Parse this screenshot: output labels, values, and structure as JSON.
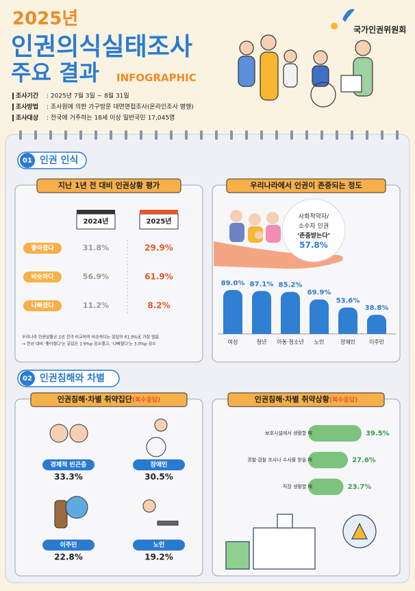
{
  "header": {
    "year": "2025년",
    "title": "인권의식실태조사",
    "subtitle": "주요 결과",
    "tag": "INFOGRAPHIC",
    "logo": "국가인권위원회",
    "info": [
      {
        "label": "조사기간",
        "text": ": 2025년 7월 3일 ~ 8월 31일"
      },
      {
        "label": "조사방법",
        "text": ": 조사원에 의한 가구방문 대면면접조사(온라인조사 병행)"
      },
      {
        "label": "조사대상",
        "text": ": 전국에 거주하는 18세 이상 일반국민 17,045명"
      }
    ]
  },
  "sections": [
    {
      "number": "01",
      "title": "인권 인식"
    },
    {
      "number": "02",
      "title": "인권침해와 차별"
    }
  ],
  "comparison": {
    "title": "지난 1년 전 대비 인권상황 평가",
    "columns": [
      "2024년",
      "2025년"
    ],
    "rows": [
      [
        "좋아졌다",
        "31.8%",
        "29.9%"
      ],
      [
        "비슷하다",
        "56.9%",
        "61.9%"
      ],
      [
        "나빠졌다",
        "11.2%",
        "8.2%"
      ]
    ],
    "note": [
      "우리나라 인권상황은 1년 전과 비교하여 비슷하다는 응답이 61.9%로 가장 많음",
      "→ 전년 대비 '좋아졌다'는 응답은 1.9%p 감소했고, '나빠졌다'는 3.0%p 감소"
    ]
  },
  "callout": {
    "lines": [
      "사회적약자/",
      "소수자 인권",
      "‘존중받는다’"
    ],
    "value": "57.8%"
  },
  "groups": {
    "title": "인권침해·차별 취약집단",
    "note": "(복수응답)",
    "items": [
      {
        "label": "경제적 빈곤층",
        "value": "33.3%"
      },
      {
        "label": "장애인",
        "value": "30.5%"
      },
      {
        "label": "이주민",
        "value": "22.8%"
      },
      {
        "label": "노인",
        "value": "19.2%"
      }
    ]
  },
  "chart_data": [
    {
      "type": "bar",
      "title": "우리나라에서 인권이 존중되는 정도",
      "categories": [
        "여성",
        "청년",
        "아동·청소년",
        "노인",
        "장애인",
        "이주민"
      ],
      "values": [
        89.0,
        87.1,
        85.2,
        69.9,
        53.6,
        38.8
      ],
      "value_labels": [
        "89.0%",
        "87.1%",
        "85.2%",
        "69.9%",
        "53.6%",
        "38.8%"
      ],
      "color": "#2f7fd3"
    },
    {
      "type": "barh",
      "title": "인권침해·차별 취약상황",
      "subtitle": "(복수응답)",
      "categories": [
        "보호시설에서 생활할 때",
        "경찰·검찰 조사나 수사를 받을 때",
        "직장 생활할 때"
      ],
      "values": [
        39.5,
        27.6,
        23.7
      ],
      "value_labels": [
        "39.5%",
        "27.6%",
        "23.7%"
      ],
      "color": "#7cc47e"
    }
  ]
}
